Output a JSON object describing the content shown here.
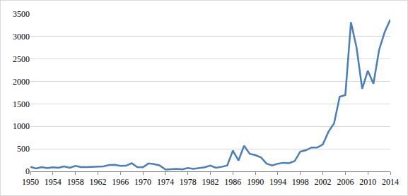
{
  "chart_data": {
    "type": "line",
    "color": "#4a7ebb",
    "grid": true,
    "x": [
      1950,
      1951,
      1952,
      1953,
      1954,
      1955,
      1956,
      1957,
      1958,
      1959,
      1960,
      1961,
      1962,
      1963,
      1964,
      1965,
      1966,
      1967,
      1968,
      1969,
      1970,
      1971,
      1972,
      1973,
      1974,
      1975,
      1976,
      1977,
      1978,
      1979,
      1980,
      1981,
      1982,
      1983,
      1984,
      1985,
      1986,
      1987,
      1988,
      1989,
      1990,
      1991,
      1992,
      1993,
      1994,
      1995,
      1996,
      1997,
      1998,
      1999,
      2000,
      2001,
      2002,
      2003,
      2004,
      2005,
      2006,
      2007,
      2008,
      2009,
      2010,
      2011,
      2012,
      2013,
      2014
    ],
    "values": [
      100,
      65,
      95,
      70,
      90,
      80,
      110,
      80,
      120,
      95,
      95,
      100,
      95,
      110,
      140,
      145,
      120,
      125,
      180,
      95,
      90,
      175,
      160,
      130,
      40,
      50,
      55,
      45,
      75,
      55,
      70,
      90,
      130,
      80,
      100,
      130,
      460,
      240,
      570,
      390,
      360,
      310,
      170,
      130,
      170,
      190,
      180,
      230,
      440,
      470,
      530,
      530,
      600,
      880,
      1070,
      1660,
      1700,
      3320,
      2750,
      1840,
      2240,
      1950,
      2700,
      3100,
      3380
    ],
    "xlim": [
      1950,
      2014
    ],
    "xticks": [
      1950,
      1954,
      1958,
      1962,
      1966,
      1970,
      1974,
      1978,
      1982,
      1986,
      1990,
      1994,
      1998,
      2002,
      2006,
      2010,
      2014
    ],
    "ylim": [
      0,
      3500
    ],
    "yticks": [
      0,
      500,
      1000,
      1500,
      2000,
      2500,
      3000,
      3500
    ]
  }
}
